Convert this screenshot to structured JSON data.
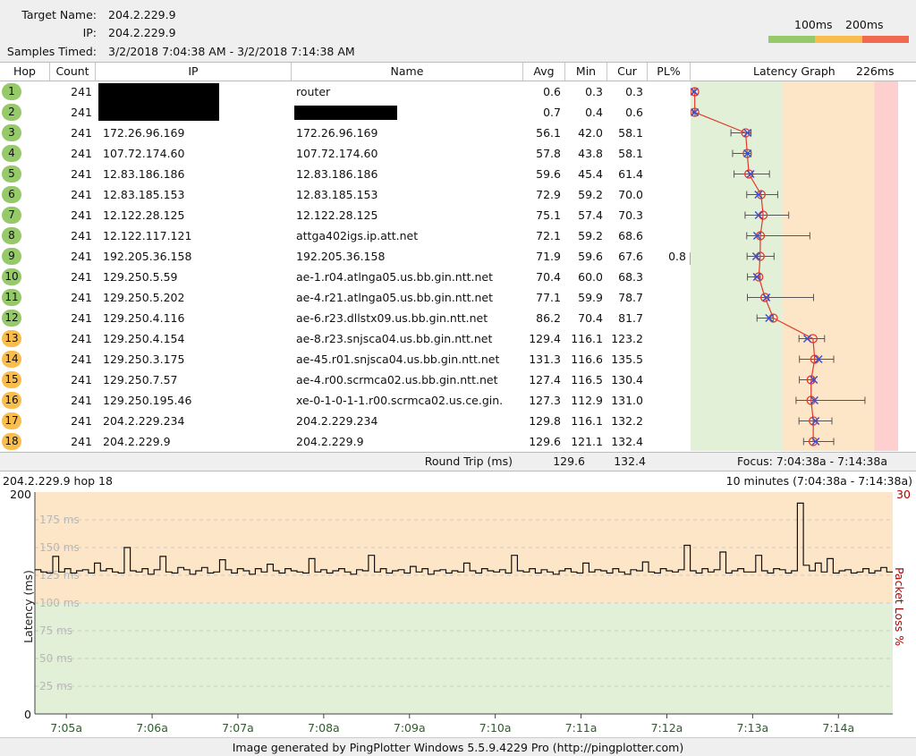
{
  "header": {
    "target_label": "Target Name:",
    "target_value": "204.2.229.9",
    "ip_label": "IP:",
    "ip_value": "204.2.229.9",
    "samples_label": "Samples Timed:",
    "samples_value": "3/2/2018 7:04:38 AM - 3/2/2018 7:14:38 AM",
    "legend_100": "100ms",
    "legend_200": "200ms"
  },
  "colors": {
    "green": "#95c96a",
    "orange": "#f9bd4e",
    "red": "#f16a4f",
    "zone_green": "#e2f0d7",
    "zone_orange": "#fde6c7",
    "zone_red": "#fdd0cf",
    "line": "#e03a2a"
  },
  "columns": {
    "hop": "Hop",
    "count": "Count",
    "ip": "IP",
    "name": "Name",
    "avg": "Avg",
    "min": "Min",
    "cur": "Cur",
    "pl": "PL%",
    "graph": "Latency Graph",
    "graph_max": "226ms"
  },
  "hops": [
    {
      "hop": "1",
      "count": "241",
      "ip": "",
      "name": "router",
      "avg": "0.6",
      "min": "0.3",
      "cur": "0.3",
      "pl": "",
      "color": "green",
      "redact_ip": true,
      "redact_name": false
    },
    {
      "hop": "2",
      "count": "241",
      "ip": "",
      "name": "",
      "avg": "0.7",
      "min": "0.4",
      "cur": "0.6",
      "pl": "",
      "color": "green",
      "redact_ip": true,
      "redact_name": true
    },
    {
      "hop": "3",
      "count": "241",
      "ip": "172.26.96.169",
      "name": "172.26.96.169",
      "avg": "56.1",
      "min": "42.0",
      "cur": "58.1",
      "pl": "",
      "color": "green"
    },
    {
      "hop": "4",
      "count": "241",
      "ip": "107.72.174.60",
      "name": "107.72.174.60",
      "avg": "57.8",
      "min": "43.8",
      "cur": "58.1",
      "pl": "",
      "color": "green"
    },
    {
      "hop": "5",
      "count": "241",
      "ip": "12.83.186.186",
      "name": "12.83.186.186",
      "avg": "59.6",
      "min": "45.4",
      "cur": "61.4",
      "pl": "",
      "color": "green"
    },
    {
      "hop": "6",
      "count": "241",
      "ip": "12.83.185.153",
      "name": "12.83.185.153",
      "avg": "72.9",
      "min": "59.2",
      "cur": "70.0",
      "pl": "",
      "color": "green"
    },
    {
      "hop": "7",
      "count": "241",
      "ip": "12.122.28.125",
      "name": "12.122.28.125",
      "avg": "75.1",
      "min": "57.4",
      "cur": "70.3",
      "pl": "",
      "color": "green"
    },
    {
      "hop": "8",
      "count": "241",
      "ip": "12.122.117.121",
      "name": "attga402igs.ip.att.net",
      "avg": "72.1",
      "min": "59.2",
      "cur": "68.6",
      "pl": "",
      "color": "green"
    },
    {
      "hop": "9",
      "count": "241",
      "ip": "192.205.36.158",
      "name": "192.205.36.158",
      "avg": "71.9",
      "min": "59.6",
      "cur": "67.6",
      "pl": "0.8",
      "color": "green"
    },
    {
      "hop": "10",
      "count": "241",
      "ip": "129.250.5.59",
      "name": "ae-1.r04.atlnga05.us.bb.gin.ntt.net",
      "avg": "70.4",
      "min": "60.0",
      "cur": "68.3",
      "pl": "",
      "color": "green"
    },
    {
      "hop": "11",
      "count": "241",
      "ip": "129.250.5.202",
      "name": "ae-4.r21.atlnga05.us.bb.gin.ntt.net",
      "avg": "77.1",
      "min": "59.9",
      "cur": "78.7",
      "pl": "",
      "color": "green"
    },
    {
      "hop": "12",
      "count": "241",
      "ip": "129.250.4.116",
      "name": "ae-6.r23.dllstx09.us.bb.gin.ntt.net",
      "avg": "86.2",
      "min": "70.4",
      "cur": "81.7",
      "pl": "",
      "color": "green"
    },
    {
      "hop": "13",
      "count": "241",
      "ip": "129.250.4.154",
      "name": "ae-8.r23.snjsca04.us.bb.gin.ntt.net",
      "avg": "129.4",
      "min": "116.1",
      "cur": "123.2",
      "pl": "",
      "color": "orange"
    },
    {
      "hop": "14",
      "count": "241",
      "ip": "129.250.3.175",
      "name": "ae-45.r01.snjsca04.us.bb.gin.ntt.net",
      "avg": "131.3",
      "min": "116.6",
      "cur": "135.5",
      "pl": "",
      "color": "orange"
    },
    {
      "hop": "15",
      "count": "241",
      "ip": "129.250.7.57",
      "name": "ae-4.r00.scrmca02.us.bb.gin.ntt.net",
      "avg": "127.4",
      "min": "116.5",
      "cur": "130.4",
      "pl": "",
      "color": "orange"
    },
    {
      "hop": "16",
      "count": "241",
      "ip": "129.250.195.46",
      "name": "xe-0-1-0-1-1.r00.scrmca02.us.ce.gin.",
      "avg": "127.3",
      "min": "112.9",
      "cur": "131.0",
      "pl": "",
      "color": "orange"
    },
    {
      "hop": "17",
      "count": "241",
      "ip": "204.2.229.234",
      "name": "204.2.229.234",
      "avg": "129.8",
      "min": "116.1",
      "cur": "132.2",
      "pl": "",
      "color": "orange"
    },
    {
      "hop": "18",
      "count": "241",
      "ip": "204.2.229.9",
      "name": "204.2.229.9",
      "avg": "129.6",
      "min": "121.1",
      "cur": "132.4",
      "pl": "",
      "color": "orange"
    }
  ],
  "hop_max": [
    0.8,
    0.9,
    62,
    62,
    82,
    91,
    103,
    126,
    87,
    72,
    130,
    86,
    142,
    152,
    130,
    186,
    150,
    152
  ],
  "summary": {
    "label": "Round Trip (ms)",
    "avg": "129.6",
    "cur": "132.4",
    "focus": "Focus: 7:04:38a - 7:14:38a"
  },
  "timeline": {
    "title": "204.2.229.9 hop 18",
    "range": "10 minutes (7:04:38a - 7:14:38a)",
    "y_axis_label": "Latency (ms)",
    "right_axis_label": "Packet Loss %",
    "y_top": "200",
    "y_bottom": "0",
    "right_top": "30",
    "y_gridlabels": [
      "175 ms",
      "150 ms",
      "125 ms",
      "100 ms",
      "75 ms",
      "50 ms",
      "25 ms"
    ],
    "x_labels": [
      "7:05a",
      "7:06a",
      "7:07a",
      "7:08a",
      "7:09a",
      "7:10a",
      "7:11a",
      "7:12a",
      "7:13a",
      "7:14a"
    ]
  },
  "chart_data": {
    "type": "line",
    "title": "204.2.229.9 hop 18",
    "xlabel": "",
    "ylabel": "Latency (ms)",
    "ylim": [
      0,
      200
    ],
    "y2label": "Packet Loss %",
    "y2lim": [
      0,
      30
    ],
    "x_range": [
      "7:04:38a",
      "7:14:38a"
    ],
    "series": [
      {
        "values": [
          130,
          128,
          127,
          142,
          128,
          131,
          127,
          129,
          130,
          127,
          136,
          129,
          131,
          128,
          127,
          150,
          129,
          128,
          131,
          126,
          130,
          142,
          128,
          127,
          132,
          130,
          126,
          129,
          132,
          127,
          128,
          139,
          130,
          127,
          131,
          129,
          126,
          131,
          128,
          135,
          129,
          127,
          131,
          129,
          128,
          127,
          140,
          128,
          130,
          127,
          129,
          131,
          128,
          126,
          130,
          129,
          143,
          128,
          131,
          127,
          129,
          130,
          127,
          133,
          128,
          131,
          126,
          129,
          130,
          127,
          129,
          128,
          136,
          129,
          127,
          131,
          129,
          128,
          130,
          127,
          143,
          129,
          128,
          131,
          127,
          130,
          128,
          126,
          129,
          131,
          128,
          127,
          136,
          128,
          130,
          129,
          127,
          131,
          128,
          126,
          130,
          129,
          137,
          128,
          127,
          131,
          129,
          128,
          130,
          152,
          129,
          127,
          131,
          128,
          130,
          146,
          127,
          129,
          131,
          128,
          128,
          143,
          129,
          127,
          131,
          130,
          127,
          129,
          190,
          134,
          129,
          136,
          128,
          140,
          127,
          129,
          130,
          127,
          128,
          131,
          127,
          129,
          132,
          128
        ]
      }
    ],
    "x_tick_labels": [
      "7:05a",
      "7:06a",
      "7:07a",
      "7:08a",
      "7:09a",
      "7:10a",
      "7:11a",
      "7:12a",
      "7:13a",
      "7:14a"
    ]
  },
  "footer": {
    "text": "Image generated by PingPlotter Windows 5.5.9.4229 Pro (http://pingplotter.com)"
  }
}
